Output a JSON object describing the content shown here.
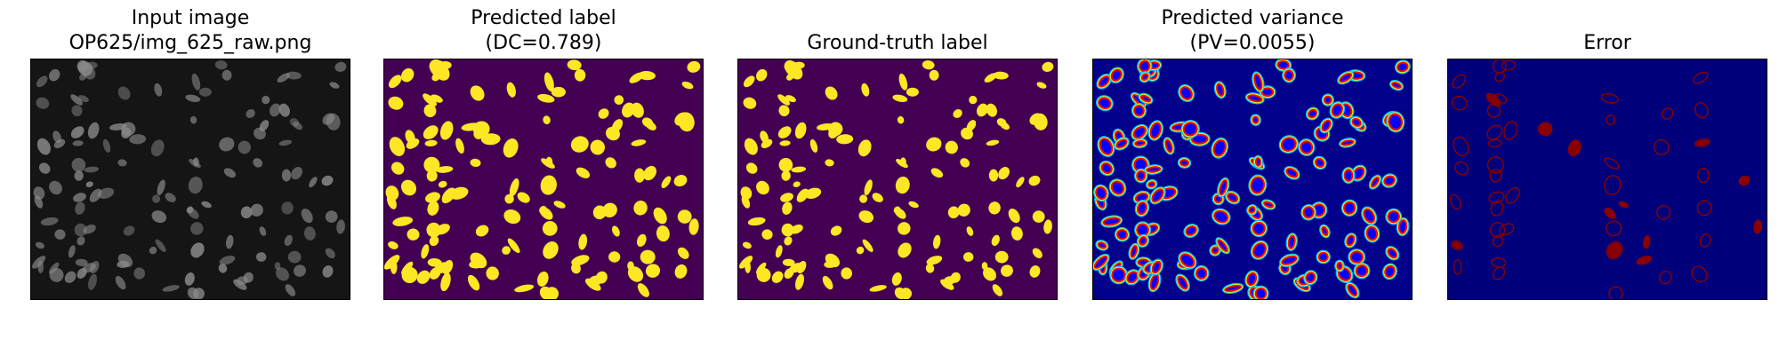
{
  "panels": [
    {
      "id": "input",
      "title_lines": [
        "Input image",
        "OP625/img_625_raw.png"
      ]
    },
    {
      "id": "pred",
      "title_lines": [
        "Predicted label",
        "(DC=0.789)"
      ]
    },
    {
      "id": "gt",
      "title_lines": [
        "Ground-truth label"
      ]
    },
    {
      "id": "var",
      "title_lines": [
        "Predicted variance",
        "(PV=0.0055)"
      ]
    },
    {
      "id": "err",
      "title_lines": [
        "Error"
      ]
    }
  ],
  "colors": {
    "input_bg": "#151515",
    "input_fg": "#8a8a8a",
    "label_bg": "#440154",
    "label_fg": "#fde725",
    "jet_bg": "#00008b",
    "jet_ring_1": "#00bfff",
    "jet_ring_2": "#ffff00",
    "jet_ring_3": "#ff0000",
    "jet_core": "#0000ff",
    "error_bg": "#00007a",
    "error_fg": "#8b0000"
  }
}
